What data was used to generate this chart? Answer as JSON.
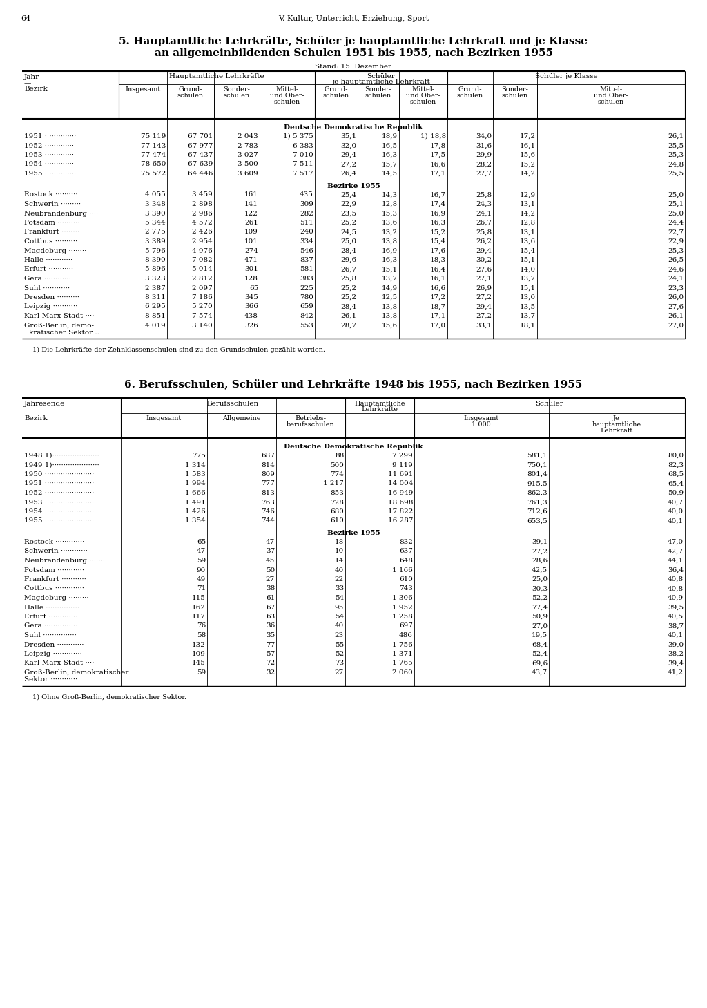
{
  "page_num": "64",
  "page_header": "V. Kultur, Unterricht, Erziehung, Sport",
  "title1": "5. Hauptamtliche Lehrkräfte, Schüler je hauptamtliche Lehrkraft und je Klasse",
  "title2": "an allgemeinbildenden Schulen 1951 bis 1955, nach Bezirken 1955",
  "stand1": "Stand: 15. Dezember",
  "section1_ddr_title": "Deutsche Demokratische Republik",
  "table1_ddr": [
    [
      "1951 · ············",
      "75 119",
      "67 701",
      "2 043",
      "1) 5 375",
      "35,1",
      "18,9",
      "1) 18,8",
      "34,0",
      "17,2",
      "26,1"
    ],
    [
      "1952 ·············",
      "77 143",
      "67 977",
      "2 783",
      "6 383",
      "32,0",
      "16,5",
      "17,8",
      "31,6",
      "16,1",
      "25,5"
    ],
    [
      "1953 ·············",
      "77 474",
      "67 437",
      "3 027",
      "7 010",
      "29,4",
      "16,3",
      "17,5",
      "29,9",
      "15,6",
      "25,3"
    ],
    [
      "1954 ·············",
      "78 650",
      "67 639",
      "3 500",
      "7 511",
      "27,2",
      "15,7",
      "16,6",
      "28,2",
      "15,2",
      "24,8"
    ],
    [
      "1955 · ············",
      "75 572",
      "64 446",
      "3 609",
      "7 517",
      "26,4",
      "14,5",
      "17,1",
      "27,7",
      "14,2",
      "25,5"
    ]
  ],
  "section1_bez_title": "Bezirke 1955",
  "table1_bez": [
    [
      "Rostock ··········",
      "4 055",
      "3 459",
      "161",
      "435",
      "25,4",
      "14,3",
      "16,7",
      "25,8",
      "12,9",
      "25,0"
    ],
    [
      "Schwerin ·········",
      "3 348",
      "2 898",
      "141",
      "309",
      "22,9",
      "12,8",
      "17,4",
      "24,3",
      "13,1",
      "25,1"
    ],
    [
      "Neubrandenburg ····",
      "3 390",
      "2 986",
      "122",
      "282",
      "23,5",
      "15,3",
      "16,9",
      "24,1",
      "14,2",
      "25,0"
    ],
    [
      "Potsdam ··········",
      "5 344",
      "4 572",
      "261",
      "511",
      "25,2",
      "13,6",
      "16,3",
      "26,7",
      "12,8",
      "24,4"
    ],
    [
      "Frankfurt ········",
      "2 775",
      "2 426",
      "109",
      "240",
      "24,5",
      "13,2",
      "15,2",
      "25,8",
      "13,1",
      "22,7"
    ],
    [
      "Cottbus ··········",
      "3 389",
      "2 954",
      "101",
      "334",
      "25,0",
      "13,8",
      "15,4",
      "26,2",
      "13,6",
      "22,9"
    ],
    [
      "Magdeburg ········",
      "5 796",
      "4 976",
      "274",
      "546",
      "28,4",
      "16,9",
      "17,6",
      "29,4",
      "15,4",
      "25,3"
    ],
    [
      "Halle ············",
      "8 390",
      "7 082",
      "471",
      "837",
      "29,6",
      "16,3",
      "18,3",
      "30,2",
      "15,1",
      "26,5"
    ],
    [
      "Erfurt ···········",
      "5 896",
      "5 014",
      "301",
      "581",
      "26,7",
      "15,1",
      "16,4",
      "27,6",
      "14,0",
      "24,6"
    ],
    [
      "Gera ············",
      "3 323",
      "2 812",
      "128",
      "383",
      "25,8",
      "13,7",
      "16,1",
      "27,1",
      "13,7",
      "24,1"
    ],
    [
      "Suhl ············",
      "2 387",
      "2 097",
      "65",
      "225",
      "25,2",
      "14,9",
      "16,6",
      "26,9",
      "15,1",
      "23,3"
    ],
    [
      "Dresden ··········",
      "8 311",
      "7 186",
      "345",
      "780",
      "25,2",
      "12,5",
      "17,2",
      "27,2",
      "13,0",
      "26,0"
    ],
    [
      "Leipzig ···········",
      "6 295",
      "5 270",
      "366",
      "659",
      "28,4",
      "13,8",
      "18,7",
      "29,4",
      "13,5",
      "27,6"
    ],
    [
      "Karl-Marx-Stadt ····",
      "8 851",
      "7 574",
      "438",
      "842",
      "26,1",
      "13,8",
      "17,1",
      "27,2",
      "13,7",
      "26,1"
    ],
    [
      "Groß-Berlin, demo-|kratischer Sektor ..",
      "4 019",
      "3 140",
      "326",
      "553",
      "28,7",
      "15,6",
      "17,0",
      "33,1",
      "18,1",
      "27,0"
    ]
  ],
  "footnote1": "1) Die Lehrkräfte der Zehnklassenschulen sind zu den Grundschulen gezählt worden.",
  "title3": "6. Berufsschulen, Schüler und Lehrkräfte 1948 bis 1955, nach Bezirken 1955",
  "section2_ddr_title": "Deutsche Demokratische Republik",
  "table2_ddr": [
    [
      "1948 1)·····················",
      "775",
      "687",
      "88",
      "7 299",
      "581,1",
      "80,0"
    ],
    [
      "1949 1)·····················",
      "1 314",
      "814",
      "500",
      "9 119",
      "750,1",
      "82,3"
    ],
    [
      "1950 ······················",
      "1 583",
      "809",
      "774",
      "11 691",
      "801,4",
      "68,5"
    ],
    [
      "1951 ······················",
      "1 994",
      "777",
      "1 217",
      "14 004",
      "915,5",
      "65,4"
    ],
    [
      "1952 ······················",
      "1 666",
      "813",
      "853",
      "16 949",
      "862,3",
      "50,9"
    ],
    [
      "1953 ······················",
      "1 491",
      "763",
      "728",
      "18 698",
      "761,3",
      "40,7"
    ],
    [
      "1954 ······················",
      "1 426",
      "746",
      "680",
      "17 822",
      "712,6",
      "40,0"
    ],
    [
      "1955 ······················",
      "1 354",
      "744",
      "610",
      "16 287",
      "653,5",
      "40,1"
    ]
  ],
  "section2_bez_title": "Bezirke 1955",
  "table2_bez": [
    [
      "Rostock ·············",
      "65",
      "47",
      "18",
      "832",
      "39,1",
      "47,0"
    ],
    [
      "Schwerin ············",
      "47",
      "37",
      "10",
      "637",
      "27,2",
      "42,7"
    ],
    [
      "Neubrandenburg ·······",
      "59",
      "45",
      "14",
      "648",
      "28,6",
      "44,1"
    ],
    [
      "Potsdam ············",
      "90",
      "50",
      "40",
      "1 166",
      "42,5",
      "36,4"
    ],
    [
      "Frankfurt ···········",
      "49",
      "27",
      "22",
      "610",
      "25,0",
      "40,8"
    ],
    [
      "Cottbus ·············",
      "71",
      "38",
      "33",
      "743",
      "30,3",
      "40,8"
    ],
    [
      "Magdeburg ·········",
      "115",
      "61",
      "54",
      "1 306",
      "52,2",
      "40,9"
    ],
    [
      "Halle ···············",
      "162",
      "67",
      "95",
      "1 952",
      "77,4",
      "39,5"
    ],
    [
      "Erfurt ·············",
      "117",
      "63",
      "54",
      "1 258",
      "50,9",
      "40,5"
    ],
    [
      "Gera ···············",
      "76",
      "36",
      "40",
      "697",
      "27,0",
      "38,7"
    ],
    [
      "Suhl ···············",
      "58",
      "35",
      "23",
      "486",
      "19,5",
      "40,1"
    ],
    [
      "Dresden ············",
      "132",
      "77",
      "55",
      "1 756",
      "68,4",
      "39,0"
    ],
    [
      "Leipzig ·············",
      "109",
      "57",
      "52",
      "1 371",
      "52,4",
      "38,2"
    ],
    [
      "Karl-Marx-Stadt ····",
      "145",
      "72",
      "73",
      "1 765",
      "69,6",
      "39,4"
    ],
    [
      "Groß-Berlin, demokratischer|Sektor ············",
      "59",
      "32",
      "27",
      "2 060",
      "43,7",
      "41,2"
    ]
  ],
  "footnote2": "1) Ohne Groß-Berlin, demokratischer Sektor."
}
